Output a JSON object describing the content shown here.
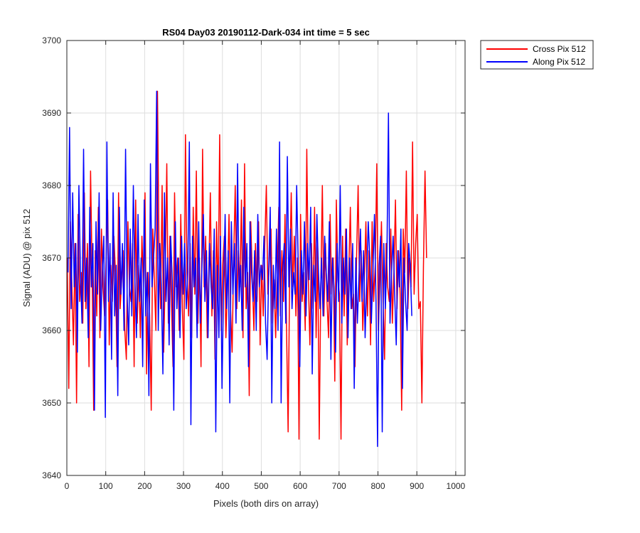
{
  "chart_data": {
    "type": "line",
    "title": "RS04 Day03 20190112-Dark-034 int time = 5 sec",
    "xlabel": "Pixels (both dirs on array)",
    "ylabel": "Signal (ADU) @ pix 512",
    "xlim": [
      0,
      1024
    ],
    "ylim": [
      3640,
      3700
    ],
    "x_ticks": [
      0,
      100,
      200,
      300,
      400,
      500,
      600,
      700,
      800,
      900,
      1000
    ],
    "y_ticks": [
      3640,
      3650,
      3660,
      3670,
      3680,
      3690,
      3700
    ],
    "grid": true,
    "legend_position": "outside-top-right",
    "series": [
      {
        "name": "Cross Pix 512",
        "color": "#ff0000",
        "x_start": 1,
        "x_step": 4,
        "values": [
          3670,
          3652,
          3675,
          3666,
          3658,
          3672,
          3650,
          3676,
          3664,
          3668,
          3661,
          3679,
          3663,
          3672,
          3655,
          3682,
          3668,
          3649,
          3671,
          3662,
          3677,
          3659,
          3674,
          3666,
          3662,
          3670,
          3678,
          3658,
          3669,
          3664,
          3673,
          3668,
          3655,
          3679,
          3663,
          3667,
          3671,
          3660,
          3656,
          3675,
          3666,
          3664,
          3672,
          3655,
          3678,
          3661,
          3669,
          3659,
          3673,
          3666,
          3679,
          3654,
          3668,
          3662,
          3649,
          3674,
          3667,
          3660,
          3693,
          3672,
          3663,
          3680,
          3657,
          3668,
          3683,
          3661,
          3673,
          3664,
          3655,
          3679,
          3666,
          3670,
          3660,
          3676,
          3663,
          3656,
          3687,
          3668,
          3662,
          3672,
          3659,
          3677,
          3665,
          3682,
          3661,
          3670,
          3655,
          3685,
          3666,
          3673,
          3659,
          3668,
          3679,
          3662,
          3671,
          3656,
          3675,
          3664,
          3687,
          3660,
          3669,
          3673,
          3659,
          3666,
          3676,
          3663,
          3657,
          3670,
          3680,
          3663,
          3671,
          3666,
          3678,
          3659,
          3683,
          3663,
          3668,
          3651,
          3675,
          3667,
          3660,
          3672,
          3664,
          3675,
          3658,
          3669,
          3662,
          3672,
          3680,
          3665,
          3670,
          3674,
          3661,
          3667,
          3659,
          3668,
          3677,
          3662,
          3671,
          3664,
          3676,
          3660,
          3646,
          3668,
          3679,
          3666,
          3673,
          3662,
          3670,
          3645,
          3676,
          3664,
          3668,
          3660,
          3685,
          3667,
          3658,
          3672,
          3663,
          3677,
          3659,
          3672,
          3645,
          3666,
          3680,
          3662,
          3672,
          3664,
          3659,
          3676,
          3665,
          3670,
          3653,
          3678,
          3667,
          3665,
          3645,
          3673,
          3662,
          3674,
          3658,
          3668,
          3677,
          3663,
          3665,
          3655,
          3670,
          3680,
          3664,
          3671,
          3660,
          3667,
          3675,
          3662,
          3671,
          3658,
          3675,
          3664,
          3669,
          3683,
          3660,
          3667,
          3675,
          3664,
          3656,
          3672,
          3666,
          3664,
          3674,
          3661,
          3668,
          3678,
          3663,
          3671,
          3665,
          3649,
          3674,
          3668,
          3682,
          3663,
          3670,
          3666,
          3686,
          3665,
          3672,
          3676,
          3663,
          3664,
          3650,
          3669,
          3682,
          3670
        ]
      },
      {
        "name": "Along Pix 512",
        "color": "#0000ff",
        "x_start": 3,
        "x_step": 4,
        "values": [
          3668,
          3688,
          3663,
          3679,
          3666,
          3672,
          3657,
          3680,
          3668,
          3661,
          3685,
          3664,
          3670,
          3659,
          3677,
          3666,
          3672,
          3649,
          3675,
          3665,
          3679,
          3660,
          3668,
          3673,
          3648,
          3686,
          3664,
          3672,
          3656,
          3679,
          3662,
          3669,
          3651,
          3677,
          3665,
          3672,
          3660,
          3685,
          3665,
          3658,
          3674,
          3662,
          3680,
          3667,
          3659,
          3676,
          3664,
          3670,
          3655,
          3678,
          3662,
          3668,
          3651,
          3683,
          3666,
          3670,
          3674,
          3693,
          3660,
          3672,
          3666,
          3654,
          3679,
          3664,
          3670,
          3658,
          3673,
          3667,
          3649,
          3675,
          3663,
          3670,
          3659,
          3673,
          3665,
          3672,
          3663,
          3668,
          3686,
          3647,
          3673,
          3666,
          3670,
          3659,
          3675,
          3661,
          3668,
          3676,
          3664,
          3671,
          3659,
          3672,
          3666,
          3663,
          3674,
          3646,
          3669,
          3659,
          3673,
          3652,
          3666,
          3676,
          3663,
          3671,
          3650,
          3675,
          3665,
          3672,
          3661,
          3683,
          3664,
          3669,
          3660,
          3677,
          3666,
          3672,
          3655,
          3675,
          3668,
          3664,
          3671,
          3660,
          3676,
          3666,
          3669,
          3667,
          3673,
          3661,
          3656,
          3668,
          3677,
          3650,
          3669,
          3663,
          3674,
          3660,
          3686,
          3650,
          3668,
          3672,
          3661,
          3684,
          3666,
          3674,
          3663,
          3668,
          3665,
          3680,
          3669,
          3655,
          3671,
          3665,
          3675,
          3662,
          3672,
          3667,
          3677,
          3654,
          3669,
          3664,
          3676,
          3668,
          3663,
          3670,
          3662,
          3673,
          3668,
          3664,
          3675,
          3656,
          3670,
          3666,
          3657,
          3672,
          3664,
          3680,
          3661,
          3670,
          3665,
          3674,
          3659,
          3670,
          3663,
          3672,
          3652,
          3670,
          3661,
          3667,
          3674,
          3664,
          3671,
          3659,
          3667,
          3675,
          3670,
          3661,
          3668,
          3676,
          3664,
          3644,
          3669,
          3673,
          3646,
          3672,
          3663,
          3670,
          3690,
          3661,
          3668,
          3673,
          3665,
          3658,
          3671,
          3666,
          3674,
          3652,
          3670,
          3664,
          3660,
          3672,
          3669,
          3662
        ]
      }
    ]
  }
}
